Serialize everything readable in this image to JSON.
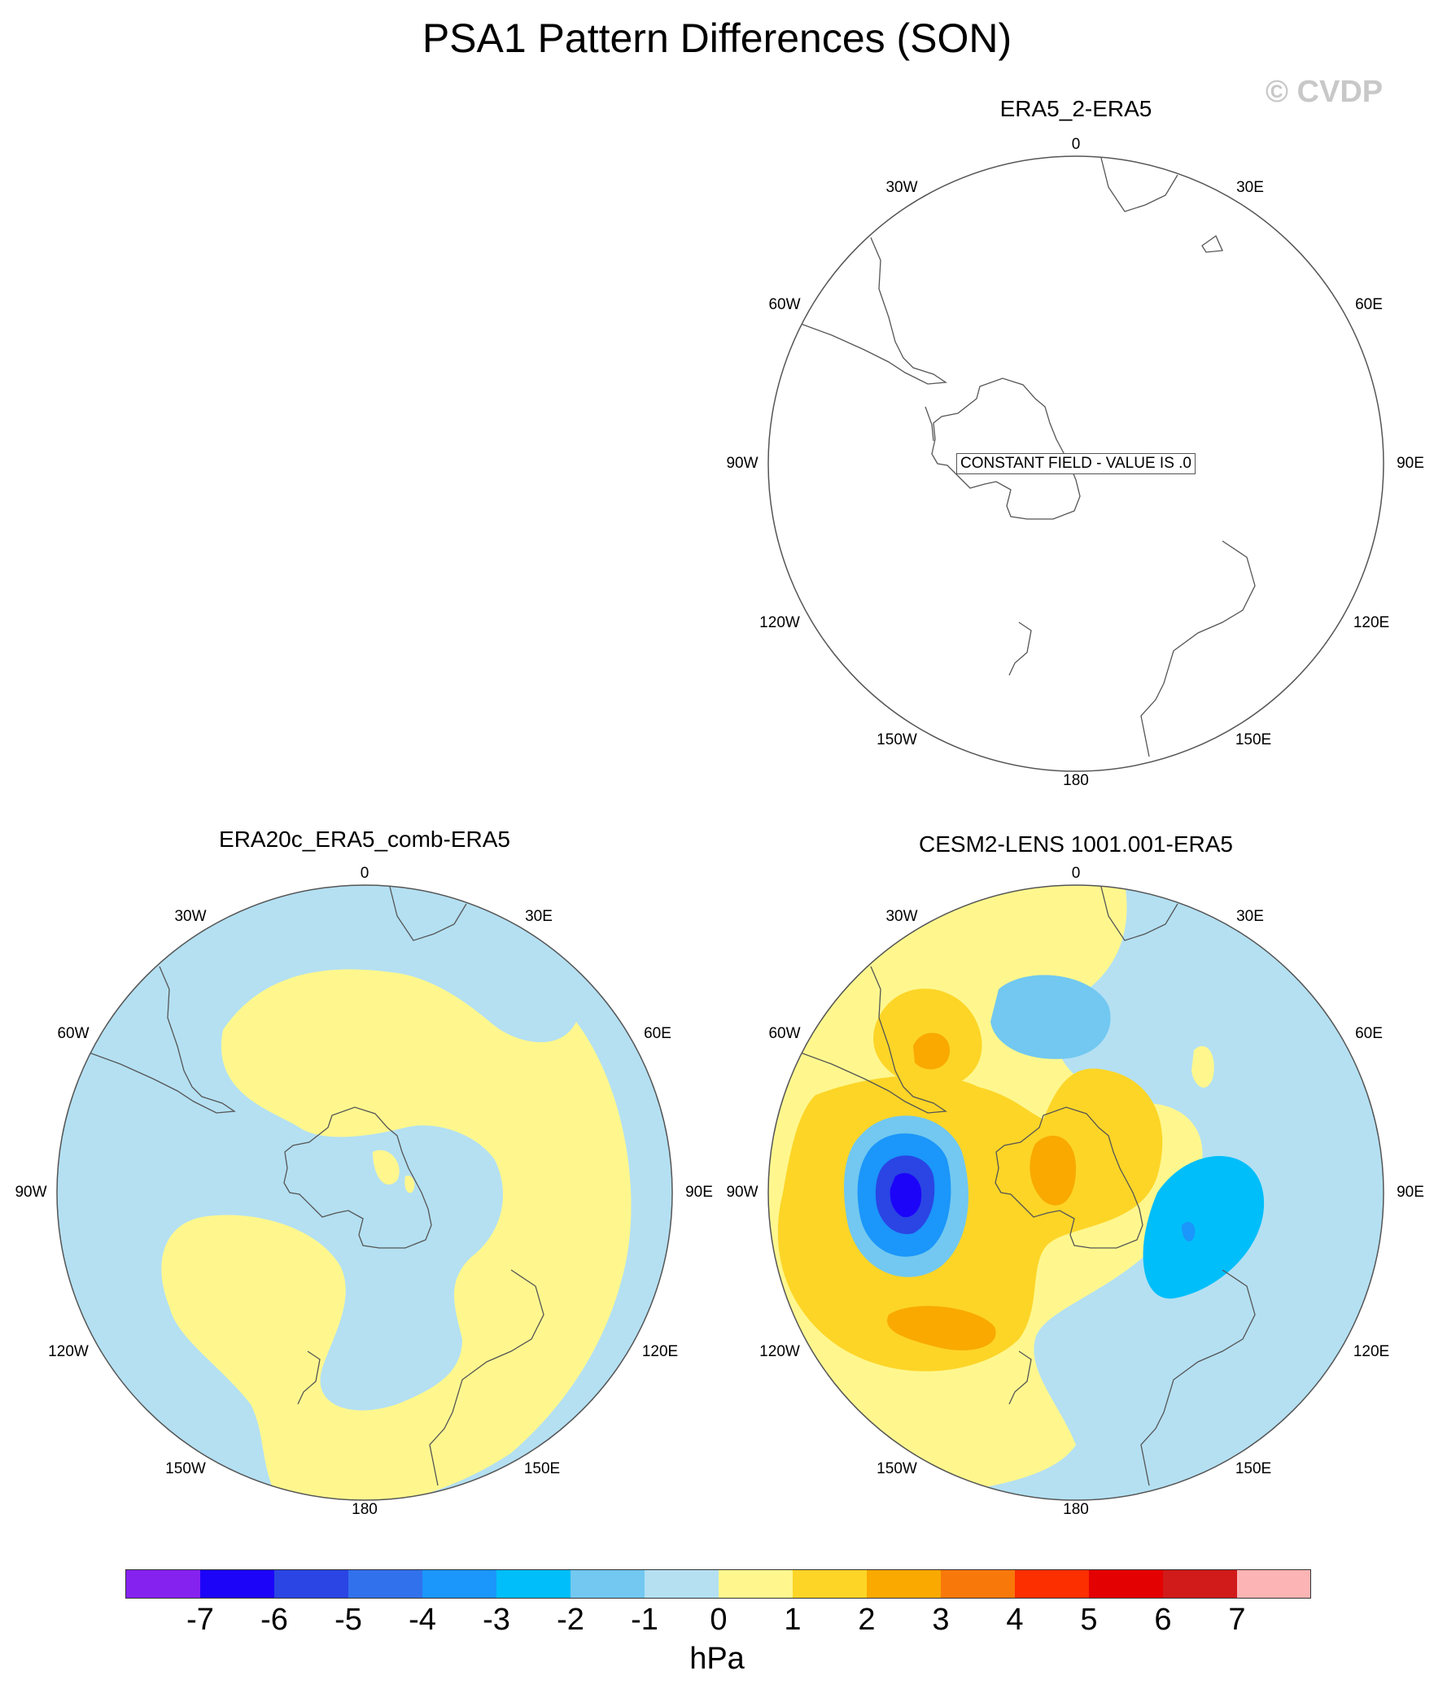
{
  "title": "PSA1 Pattern Differences (SON)",
  "watermark": "© CVDP",
  "longitude_labels": [
    "0",
    "30E",
    "60E",
    "90E",
    "120E",
    "150E",
    "180",
    "150W",
    "120W",
    "90W",
    "60W",
    "30W"
  ],
  "panels": [
    {
      "name": "ERA5_2-ERA5",
      "note": "CONSTANT FIELD - VALUE IS .0"
    },
    {
      "name": "ERA20c_ERA5_comb-ERA5"
    },
    {
      "name": "CESM2-LENS 1001.001-ERA5"
    }
  ],
  "colorbar": {
    "unit": "hPa",
    "tick_labels": [
      "-7",
      "-6",
      "-5",
      "-4",
      "-3",
      "-2",
      "-1",
      "0",
      "1",
      "2",
      "3",
      "4",
      "5",
      "6",
      "7"
    ],
    "colors": [
      "#8522f0",
      "#1c04f8",
      "#2a45e4",
      "#3271ec",
      "#1b96fa",
      "#00befa",
      "#72c8f0",
      "#b4e0f2",
      "#fff78e",
      "#fdd527",
      "#f9a900",
      "#f9780a",
      "#fb2f00",
      "#e40101",
      "#d11a1a",
      "#fcb4b4"
    ]
  }
}
